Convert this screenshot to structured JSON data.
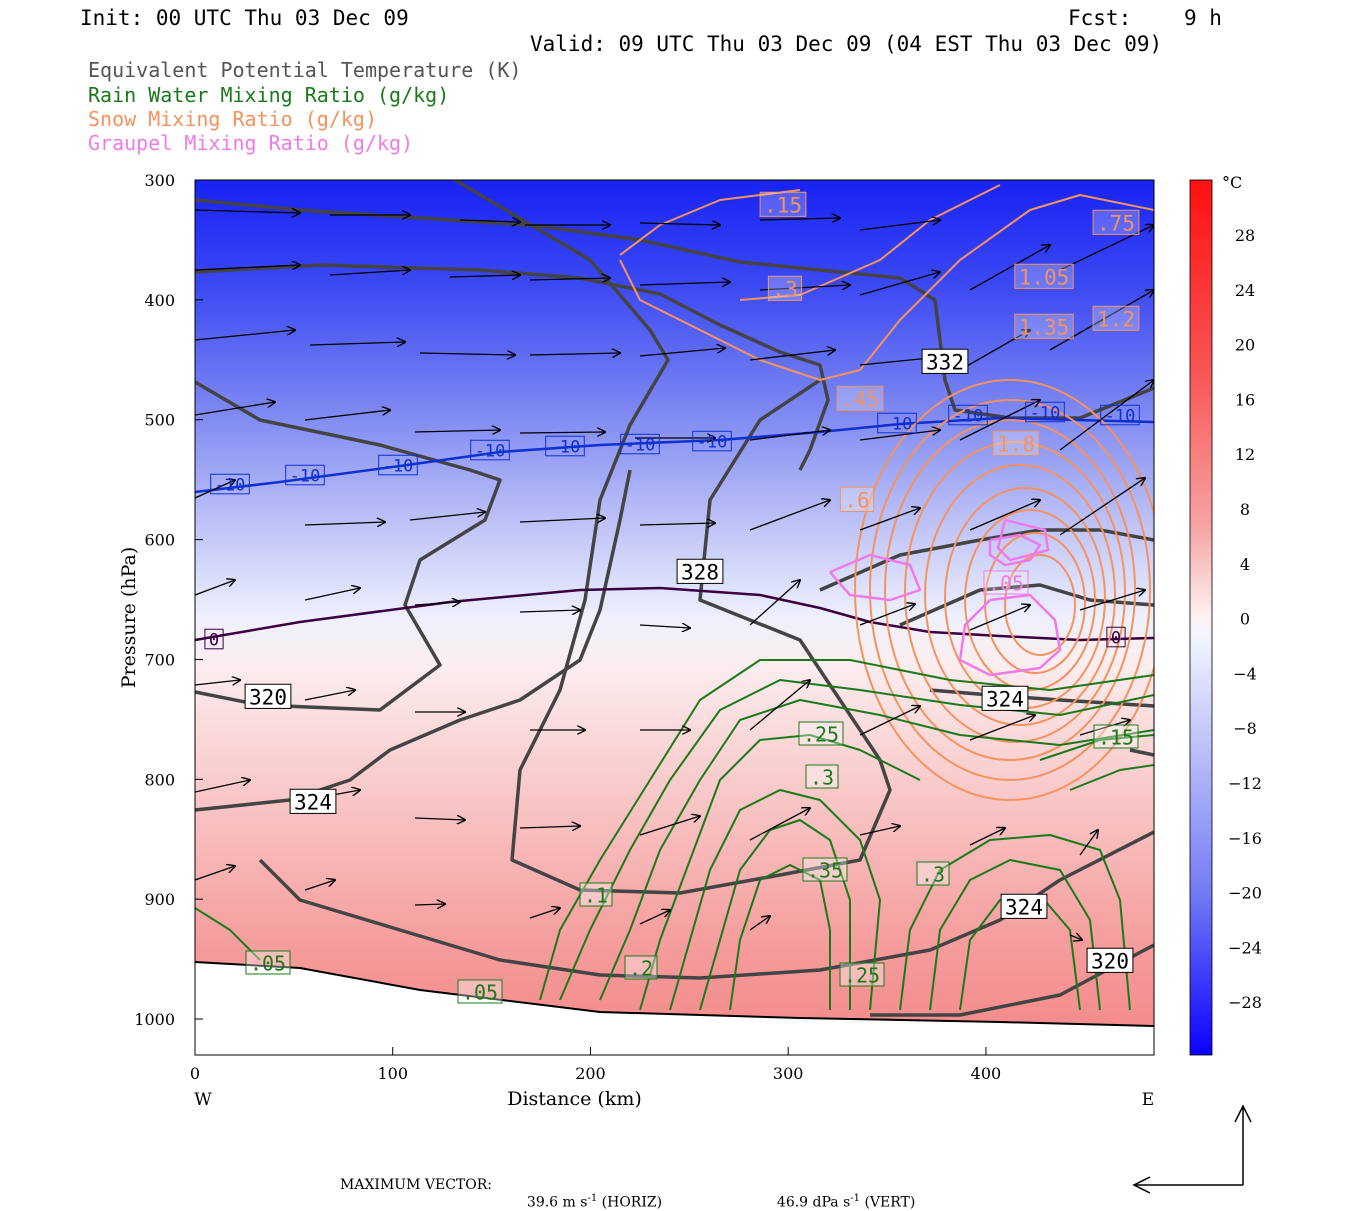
{
  "header": {
    "init": "Init: 00 UTC Thu 03 Dec 09",
    "fcst_label": "Fcst:",
    "fcst_value": "9 h",
    "valid": "Valid: 09 UTC Thu 03 Dec 09 (04 EST Thu 03 Dec 09)"
  },
  "legend": [
    {
      "label": "Equivalent Potential Temperature (K)",
      "color": "#555555"
    },
    {
      "label": "Rain Water Mixing Ratio (g/kg)",
      "color": "#1a7a1a"
    },
    {
      "label": "Snow Mixing Ratio (g/kg)",
      "color": "#f4935f"
    },
    {
      "label": "Graupel Mixing Ratio (g/kg)",
      "color": "#f07ae8"
    }
  ],
  "footer": {
    "max_label": "MAXIMUM VECTOR:",
    "horiz_value": "39.6 m s",
    "horiz_exp": "-1",
    "horiz_tag": "(HORIZ)",
    "vert_value": "46.9 dPa s",
    "vert_exp": "-1",
    "vert_tag": "(VERT)"
  },
  "chart_data": {
    "type": "heatmap",
    "xlabel": "Distance (km)",
    "ylabel": "Pressure (hPa)",
    "x_ticks": [
      "0",
      "100",
      "200",
      "300",
      "400"
    ],
    "y_ticks": [
      "300",
      "400",
      "500",
      "600",
      "700",
      "800",
      "900",
      "1000"
    ],
    "x_end_labels": {
      "left": "W",
      "right": "E"
    },
    "xlim": [
      0,
      485
    ],
    "ylim": [
      1030,
      300
    ],
    "colorbar": {
      "unit": "°C",
      "ticks": [
        "28",
        "24",
        "20",
        "16",
        "12",
        "8",
        "4",
        "0",
        "−4",
        "−8",
        "−12",
        "−16",
        "−20",
        "−24",
        "−28"
      ],
      "min_color": "#0a00ff",
      "zero_color": "#ffffff",
      "max_color": "#ff1111"
    },
    "theta_e_contours": {
      "color": "#444444",
      "labels": [
        "320",
        "324",
        "328",
        "332",
        "324",
        "324",
        "320"
      ]
    },
    "temperature_isolines": {
      "minus10_color": "#1030d0",
      "minus10_labels": [
        "-10",
        "-10",
        "-10",
        "-10",
        "-10",
        "-10",
        "-10",
        "-10",
        "-10",
        "-10",
        "-10"
      ],
      "zero_color": "#3a0040",
      "zero_labels": [
        "0",
        "0"
      ]
    },
    "rain_labels": [
      ".05",
      ".05",
      ".1",
      ".2",
      ".25",
      ".3",
      ".35",
      ".25",
      ".3",
      ".15"
    ],
    "snow_labels": [
      ".15",
      ".3",
      ".75",
      "1.05",
      "1.35",
      "1.2",
      ".45",
      "1.8",
      ".6"
    ],
    "graupel_labels": [
      ".05"
    ]
  }
}
